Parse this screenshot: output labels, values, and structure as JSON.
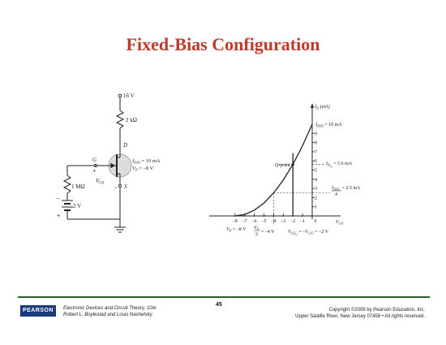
{
  "slide": {
    "title": "Fixed-Bias Configuration"
  },
  "circuit": {
    "vdd": "16 V",
    "rd": "2 kΩ",
    "drain": "D",
    "gate": "G",
    "source": "S",
    "plus_g": "+",
    "minus_s": "–",
    "vgs": "V",
    "vgs_sub": "GS",
    "idss_spec": "I",
    "idss_spec_sub": "DSS",
    "idss_spec_val": " = 10 mA",
    "vp_spec": "V",
    "vp_spec_sub": "P",
    "vp_spec_val": " = –8 V",
    "rg": "1 MΩ",
    "vgg": "2 V",
    "minus_batt": "–",
    "plus_batt": "+"
  },
  "chart_data": {
    "type": "line",
    "series": [
      {
        "name": "",
        "x": [
          -8,
          -7,
          -6,
          -5,
          -4,
          -3,
          -2,
          -1,
          0
        ],
        "y": [
          0,
          0.156,
          0.625,
          1.406,
          2.5,
          3.906,
          5.625,
          7.656,
          10
        ]
      }
    ],
    "xlim": [
      -8,
      0
    ],
    "ylim": [
      0,
      10
    ],
    "x_ticks": [
      "–8",
      "–7",
      "–6",
      "–5",
      "–4",
      "–3",
      "–2",
      "–1",
      "0"
    ],
    "y_ticks": [
      "1",
      "2",
      "3",
      "4",
      "5",
      "6",
      "7",
      "8",
      "9"
    ],
    "ylabel": "I",
    "ylabel_sub": "D",
    "ylabel_unit": " (mA)",
    "xlabel": "V",
    "xlabel_sub": "GS",
    "q_point": {
      "x": -2,
      "y": 5.6,
      "label": "Q-point"
    },
    "annotations": {
      "idss": "I",
      "idss_sub": "DSS",
      "idss_val": " = 10 mA",
      "idq": "I",
      "idq_sub": "D",
      "idq_sub2": "Q",
      "idq_val": " = 5.6 mA",
      "idss4_num": "I",
      "idss4_sub": "DSS",
      "idss4_den": "4",
      "idss4_val": " = 2.5 mA",
      "vp_label": "V",
      "vp_sub": "P",
      "vp_val": " = –8 V",
      "vp2_num": "V",
      "vp2_num_sub": "P",
      "vp2_den": "2",
      "vp2_val": " = –4 V",
      "vgsq": "V",
      "vgsq_sub": "GS",
      "vgsq_sub2": "Q",
      "vgsq_mid": " = –V",
      "vgsq_mid_sub": "GG",
      "vgsq_val": " = –2 V"
    }
  },
  "footer": {
    "logo": "PEARSON",
    "book_line1": "Electronic Devices and Circuit Theory, 10/e",
    "book_line2": "Robert L. Boylestad and Louis Nashelsky",
    "page": "45",
    "copy_line1": "Copyright ©2009 by Pearson Education, Inc.",
    "copy_line2": "Upper Saddle River, New Jersey 07458 • All rights reserved."
  }
}
